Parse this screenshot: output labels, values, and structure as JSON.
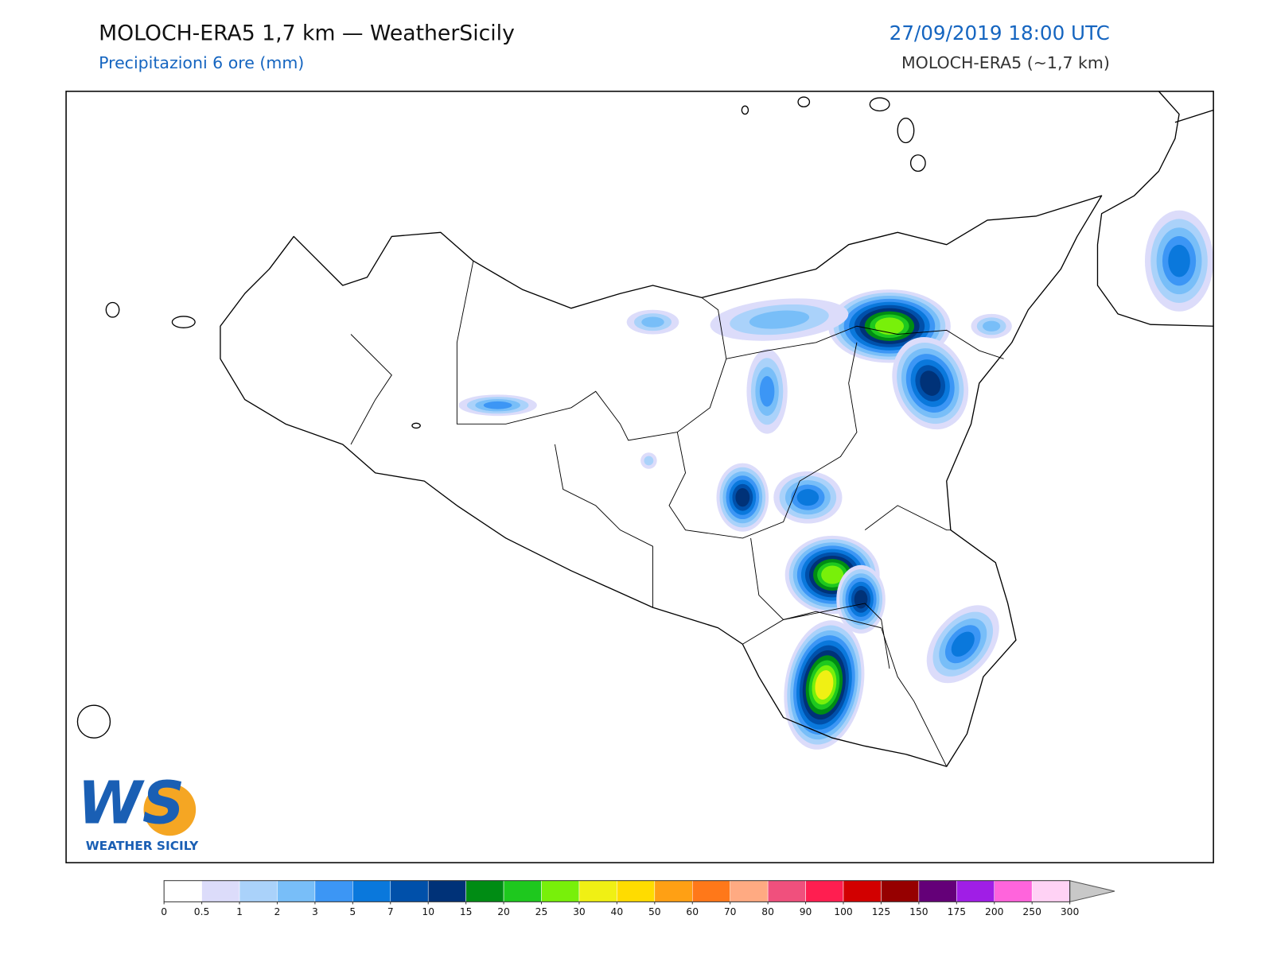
{
  "header": {
    "title": "MOLOCH-ERA5 1,7 km — WeatherSicily",
    "subtitle": "Precipitazioni 6 ore (mm)",
    "valid_time": "27/09/2019 18:00 UTC",
    "model": "MOLOCH-ERA5 (~1,7 km)"
  },
  "logo": {
    "mark": "WS",
    "name": "WEATHER SICILY"
  },
  "colorbar": {
    "levels": [
      0,
      0.5,
      1,
      2,
      3,
      5,
      7,
      10,
      15,
      20,
      25,
      30,
      40,
      50,
      60,
      70,
      80,
      90,
      100,
      125,
      150,
      175,
      200,
      250,
      300
    ],
    "colors": [
      "#ffffff",
      "#dcdcfa",
      "#aad2fa",
      "#78bef8",
      "#3c96f5",
      "#0a78dc",
      "#0050aa",
      "#003278",
      "#008c14",
      "#1ec81e",
      "#78f00a",
      "#f0f014",
      "#ffdc00",
      "#ffa014",
      "#ff7819",
      "#ffaa82",
      "#f0507d",
      "#ff1e50",
      "#d20000",
      "#960000",
      "#640078",
      "#a01ee6",
      "#ff64dc",
      "#ffd2f5"
    ],
    "extend_color": "#c8c8c8"
  }
}
